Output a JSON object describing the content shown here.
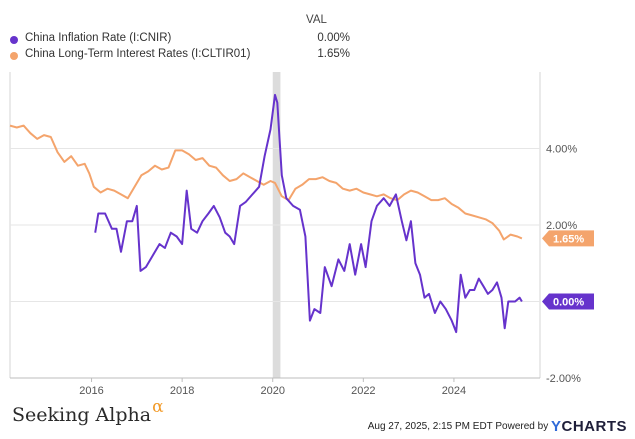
{
  "legend": {
    "header": "VAL",
    "items": [
      {
        "name": "China Inflation Rate (I:CNIR)",
        "value": "0.00%",
        "color": "#6633cc"
      },
      {
        "name": "China Long-Term Interest Rates (I:CLTIR01)",
        "value": "1.65%",
        "color": "#f4a46c"
      }
    ]
  },
  "footer": {
    "brand": "Seeking Alpha",
    "brand_symbol": "α",
    "timestamp": "Aug 27, 2025, 2:15 PM EDT Powered by",
    "ycharts_y": "Y",
    "ycharts_rest": "CHARTS"
  },
  "chart_data": {
    "type": "line",
    "title": "",
    "xlabel": "",
    "ylabel": "",
    "xlim": [
      2014.2,
      2025.9
    ],
    "ylim": [
      -2.0,
      6.0
    ],
    "grid": "horizontal",
    "y_ticks": [
      {
        "value": 4.0,
        "label": "4.00%"
      },
      {
        "value": 2.0,
        "label": "2.00%"
      },
      {
        "value": 0.0,
        "label": ""
      },
      {
        "value": -2.0,
        "label": "-2.00%"
      }
    ],
    "x_ticks": [
      {
        "value": 2016,
        "label": "2016"
      },
      {
        "value": 2018,
        "label": "2018"
      },
      {
        "value": 2020,
        "label": "2020"
      },
      {
        "value": 2022,
        "label": "2022"
      },
      {
        "value": 2024,
        "label": "2024"
      }
    ],
    "shaded_regions": [
      {
        "from": 2020.0,
        "to": 2020.17
      }
    ],
    "series": [
      {
        "name": "China Long-Term Interest Rates (I:CLTIR01)",
        "color": "#f4a46c",
        "end_label": "1.65%",
        "points": [
          [
            2014.2,
            4.6
          ],
          [
            2014.35,
            4.55
          ],
          [
            2014.5,
            4.6
          ],
          [
            2014.65,
            4.4
          ],
          [
            2014.8,
            4.25
          ],
          [
            2014.95,
            4.35
          ],
          [
            2015.1,
            4.3
          ],
          [
            2015.25,
            3.9
          ],
          [
            2015.4,
            3.65
          ],
          [
            2015.55,
            3.8
          ],
          [
            2015.7,
            3.55
          ],
          [
            2015.85,
            3.6
          ],
          [
            2015.95,
            3.35
          ],
          [
            2016.05,
            3.0
          ],
          [
            2016.2,
            2.85
          ],
          [
            2016.35,
            2.95
          ],
          [
            2016.5,
            2.9
          ],
          [
            2016.65,
            2.8
          ],
          [
            2016.8,
            2.7
          ],
          [
            2016.95,
            3.0
          ],
          [
            2017.1,
            3.3
          ],
          [
            2017.25,
            3.4
          ],
          [
            2017.4,
            3.55
          ],
          [
            2017.55,
            3.45
          ],
          [
            2017.7,
            3.5
          ],
          [
            2017.85,
            3.95
          ],
          [
            2018.0,
            3.95
          ],
          [
            2018.15,
            3.85
          ],
          [
            2018.3,
            3.7
          ],
          [
            2018.45,
            3.75
          ],
          [
            2018.6,
            3.55
          ],
          [
            2018.75,
            3.5
          ],
          [
            2018.9,
            3.3
          ],
          [
            2019.05,
            3.15
          ],
          [
            2019.2,
            3.2
          ],
          [
            2019.35,
            3.35
          ],
          [
            2019.5,
            3.25
          ],
          [
            2019.65,
            3.15
          ],
          [
            2019.8,
            3.05
          ],
          [
            2019.95,
            3.15
          ],
          [
            2020.05,
            3.1
          ],
          [
            2020.2,
            2.75
          ],
          [
            2020.35,
            2.65
          ],
          [
            2020.5,
            2.95
          ],
          [
            2020.65,
            3.05
          ],
          [
            2020.8,
            3.2
          ],
          [
            2020.95,
            3.2
          ],
          [
            2021.1,
            3.25
          ],
          [
            2021.25,
            3.15
          ],
          [
            2021.4,
            3.1
          ],
          [
            2021.55,
            2.95
          ],
          [
            2021.7,
            2.9
          ],
          [
            2021.85,
            2.95
          ],
          [
            2022.0,
            2.85
          ],
          [
            2022.15,
            2.8
          ],
          [
            2022.3,
            2.75
          ],
          [
            2022.45,
            2.8
          ],
          [
            2022.6,
            2.7
          ],
          [
            2022.75,
            2.65
          ],
          [
            2022.9,
            2.8
          ],
          [
            2023.05,
            2.9
          ],
          [
            2023.2,
            2.85
          ],
          [
            2023.35,
            2.75
          ],
          [
            2023.5,
            2.65
          ],
          [
            2023.65,
            2.65
          ],
          [
            2023.8,
            2.7
          ],
          [
            2023.95,
            2.55
          ],
          [
            2024.1,
            2.45
          ],
          [
            2024.25,
            2.3
          ],
          [
            2024.4,
            2.25
          ],
          [
            2024.55,
            2.2
          ],
          [
            2024.7,
            2.15
          ],
          [
            2024.85,
            2.05
          ],
          [
            2025.0,
            1.85
          ],
          [
            2025.1,
            1.62
          ],
          [
            2025.25,
            1.75
          ],
          [
            2025.4,
            1.7
          ],
          [
            2025.5,
            1.65
          ]
        ]
      },
      {
        "name": "China Inflation Rate (I:CNIR)",
        "color": "#6633cc",
        "end_label": "0.00%",
        "points": [
          [
            2016.08,
            1.8
          ],
          [
            2016.15,
            2.3
          ],
          [
            2016.3,
            2.3
          ],
          [
            2016.45,
            1.9
          ],
          [
            2016.55,
            1.9
          ],
          [
            2016.65,
            1.3
          ],
          [
            2016.78,
            2.1
          ],
          [
            2016.9,
            2.1
          ],
          [
            2017.0,
            2.5
          ],
          [
            2017.08,
            0.8
          ],
          [
            2017.2,
            0.9
          ],
          [
            2017.35,
            1.2
          ],
          [
            2017.5,
            1.5
          ],
          [
            2017.62,
            1.4
          ],
          [
            2017.75,
            1.8
          ],
          [
            2017.88,
            1.7
          ],
          [
            2018.0,
            1.5
          ],
          [
            2018.1,
            2.9
          ],
          [
            2018.2,
            1.9
          ],
          [
            2018.33,
            1.8
          ],
          [
            2018.45,
            2.1
          ],
          [
            2018.58,
            2.3
          ],
          [
            2018.7,
            2.5
          ],
          [
            2018.83,
            2.2
          ],
          [
            2018.95,
            1.8
          ],
          [
            2019.05,
            1.7
          ],
          [
            2019.15,
            1.5
          ],
          [
            2019.28,
            2.5
          ],
          [
            2019.4,
            2.6
          ],
          [
            2019.55,
            2.8
          ],
          [
            2019.7,
            3.0
          ],
          [
            2019.82,
            3.8
          ],
          [
            2019.95,
            4.5
          ],
          [
            2020.05,
            5.4
          ],
          [
            2020.1,
            5.2
          ],
          [
            2020.2,
            3.3
          ],
          [
            2020.3,
            2.7
          ],
          [
            2020.45,
            2.5
          ],
          [
            2020.6,
            2.4
          ],
          [
            2020.72,
            1.7
          ],
          [
            2020.82,
            -0.5
          ],
          [
            2020.92,
            -0.2
          ],
          [
            2021.05,
            -0.3
          ],
          [
            2021.15,
            0.9
          ],
          [
            2021.3,
            0.4
          ],
          [
            2021.45,
            1.1
          ],
          [
            2021.58,
            0.8
          ],
          [
            2021.7,
            1.5
          ],
          [
            2021.82,
            0.7
          ],
          [
            2021.95,
            1.5
          ],
          [
            2022.05,
            0.9
          ],
          [
            2022.18,
            2.1
          ],
          [
            2022.3,
            2.5
          ],
          [
            2022.45,
            2.7
          ],
          [
            2022.58,
            2.5
          ],
          [
            2022.72,
            2.8
          ],
          [
            2022.85,
            2.1
          ],
          [
            2022.95,
            1.6
          ],
          [
            2023.05,
            2.1
          ],
          [
            2023.15,
            1.0
          ],
          [
            2023.25,
            0.7
          ],
          [
            2023.35,
            0.1
          ],
          [
            2023.45,
            0.2
          ],
          [
            2023.58,
            -0.3
          ],
          [
            2023.7,
            0.0
          ],
          [
            2023.82,
            -0.2
          ],
          [
            2023.95,
            -0.5
          ],
          [
            2024.05,
            -0.8
          ],
          [
            2024.15,
            0.7
          ],
          [
            2024.25,
            0.1
          ],
          [
            2024.35,
            0.3
          ],
          [
            2024.45,
            0.3
          ],
          [
            2024.55,
            0.6
          ],
          [
            2024.65,
            0.4
          ],
          [
            2024.75,
            0.2
          ],
          [
            2024.85,
            0.3
          ],
          [
            2024.95,
            0.5
          ],
          [
            2025.05,
            0.1
          ],
          [
            2025.12,
            -0.7
          ],
          [
            2025.2,
            0.0
          ],
          [
            2025.35,
            0.0
          ],
          [
            2025.45,
            0.1
          ],
          [
            2025.5,
            0.0
          ]
        ]
      }
    ]
  }
}
